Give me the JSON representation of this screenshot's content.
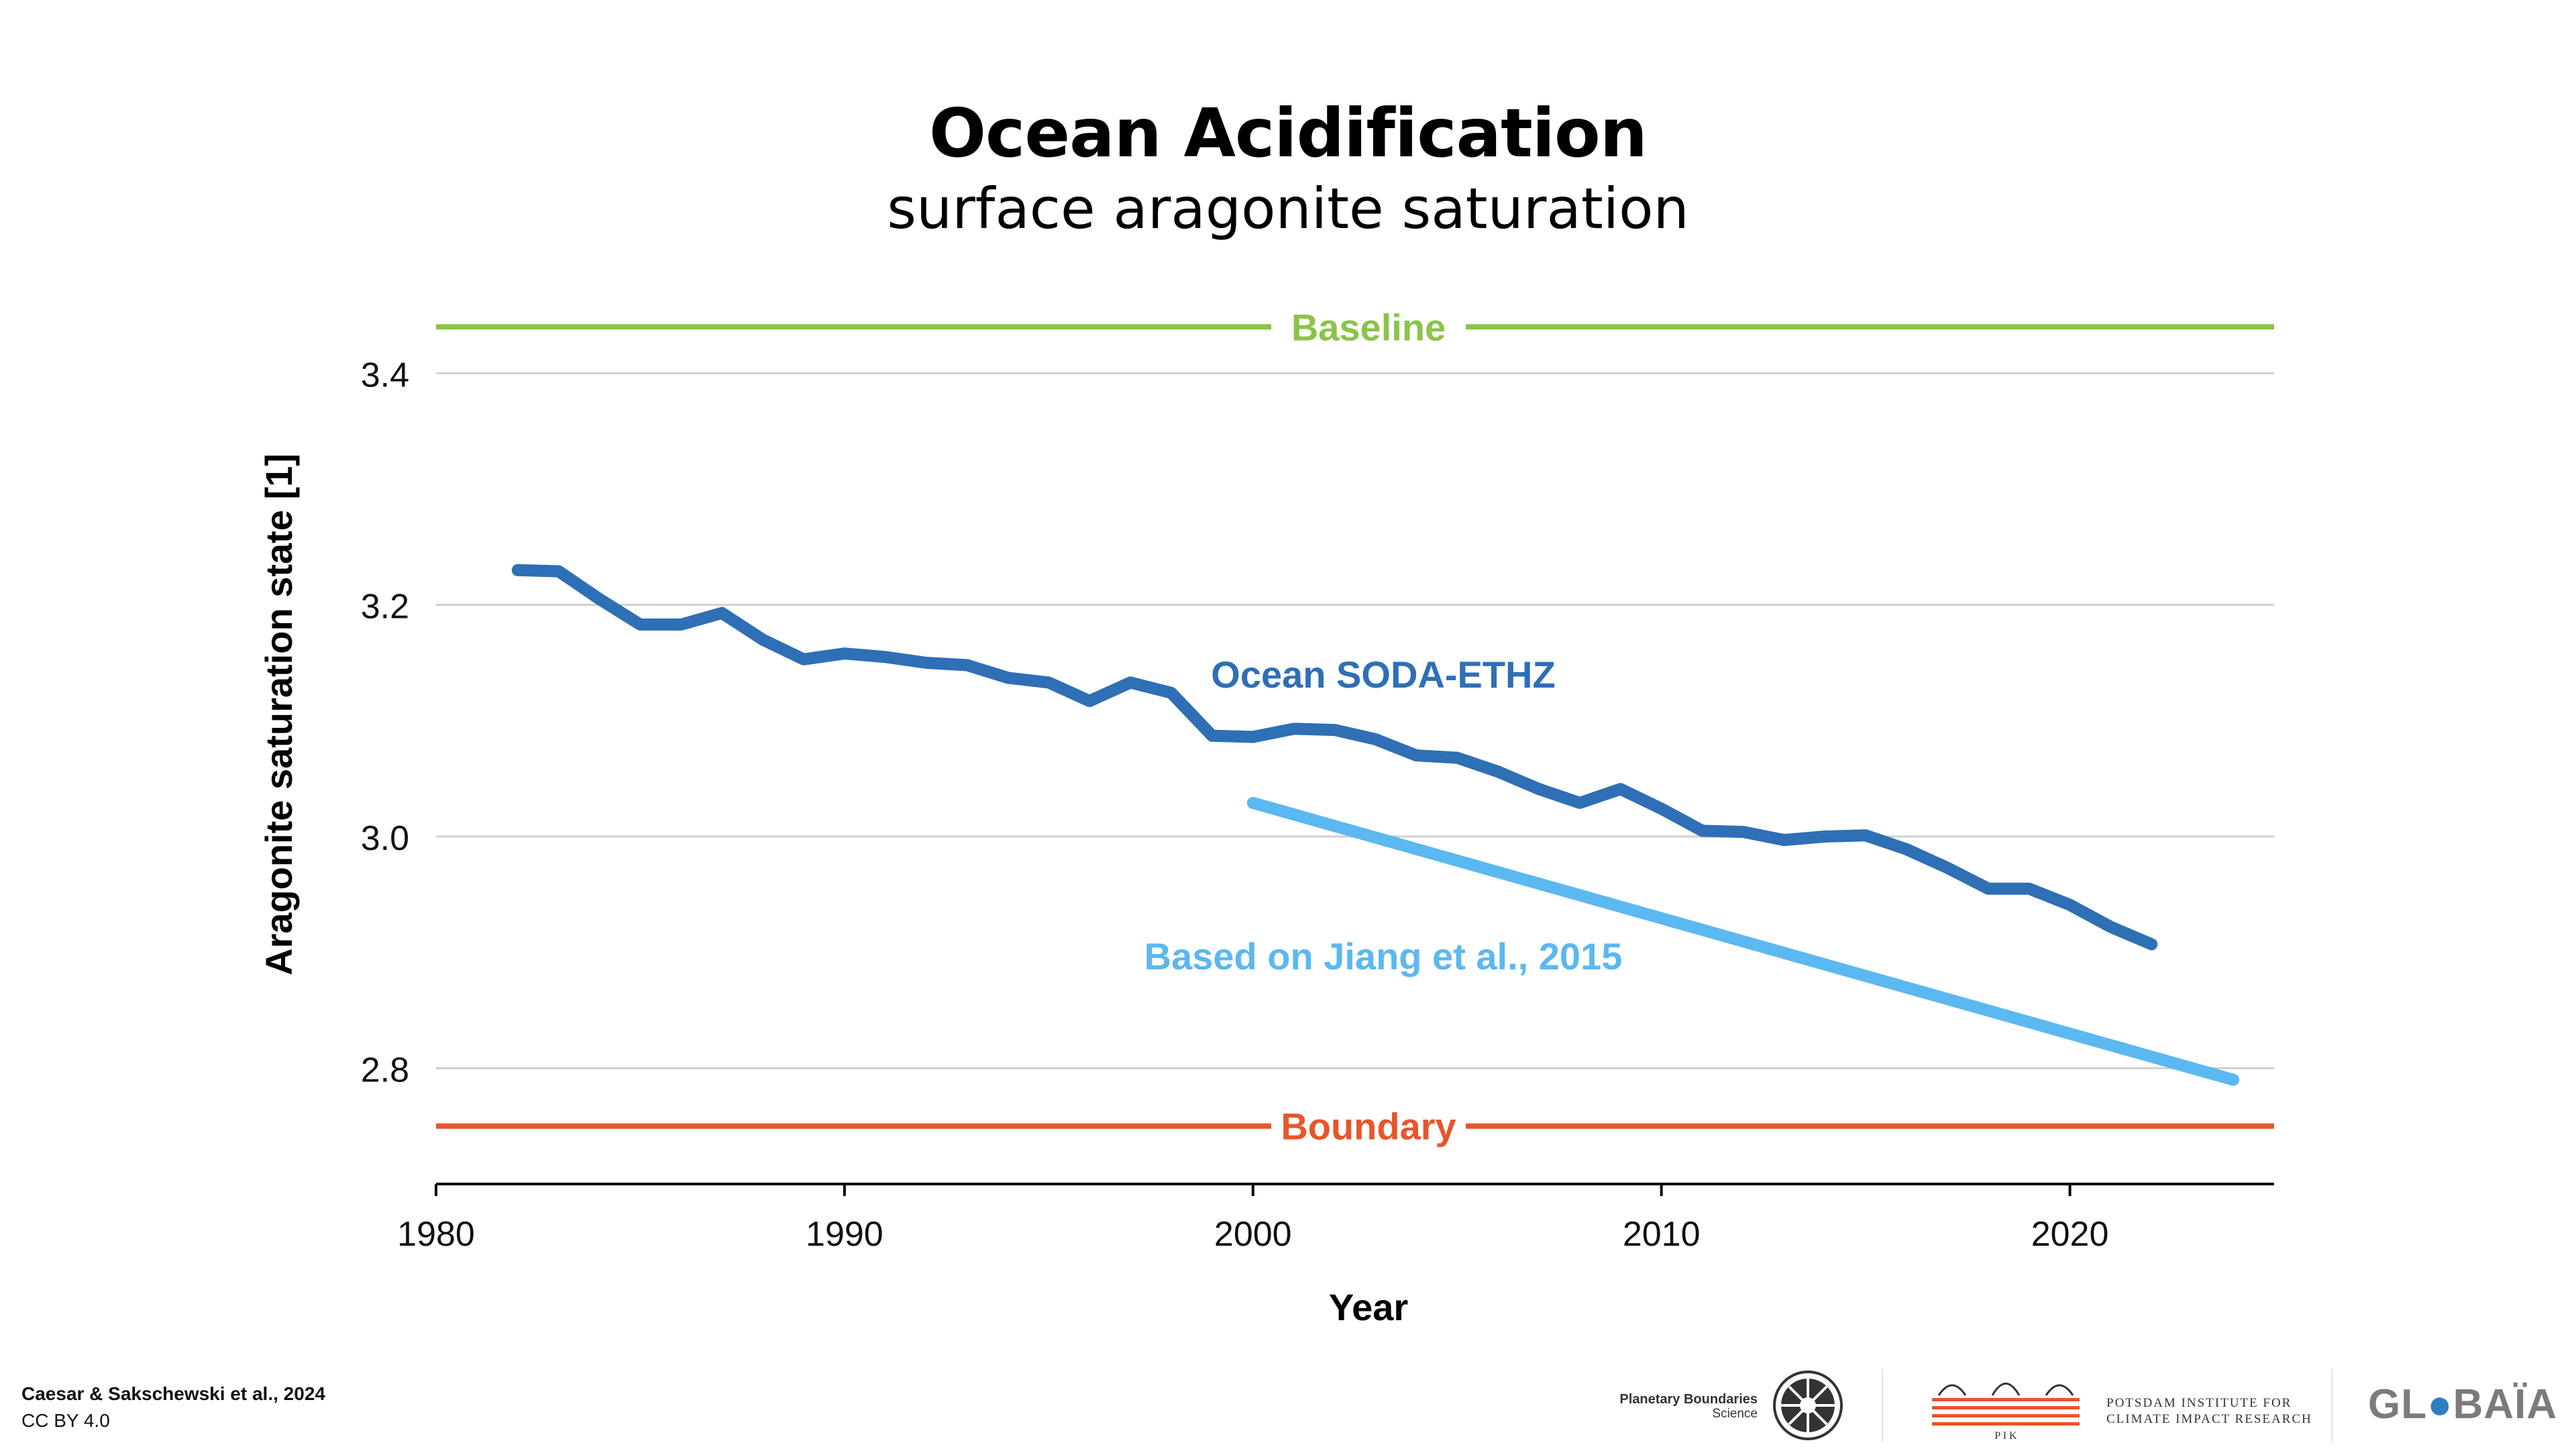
{
  "title": "Ocean Acidification",
  "subtitle": "surface aragonite saturation",
  "chart_data": {
    "type": "line",
    "xlabel": "Year",
    "ylabel": "Aragonite saturation state [1]",
    "xlim": [
      1980,
      2025
    ],
    "ylim": [
      2.7,
      3.45
    ],
    "xticks": [
      1980,
      1990,
      2000,
      2010,
      2020
    ],
    "yticks": [
      2.8,
      3.0,
      3.2,
      3.4
    ],
    "grid": "horizontal",
    "reference_lines": [
      {
        "name": "Baseline",
        "y": 3.44,
        "color": "#8bc34a"
      },
      {
        "name": "Boundary",
        "y": 2.75,
        "color": "#e8552b"
      }
    ],
    "series": [
      {
        "name": "Ocean SODA-ETHZ",
        "color": "#2e6fb5",
        "x": [
          1982,
          1983,
          1984,
          1985,
          1986,
          1987,
          1988,
          1989,
          1990,
          1991,
          1992,
          1993,
          1994,
          1995,
          1996,
          1997,
          1998,
          1999,
          2000,
          2001,
          2002,
          2003,
          2004,
          2005,
          2006,
          2007,
          2008,
          2009,
          2010,
          2011,
          2012,
          2013,
          2014,
          2015,
          2016,
          2017,
          2018,
          2019,
          2020,
          2021,
          2022
        ],
        "y": [
          3.23,
          3.229,
          3.205,
          3.183,
          3.183,
          3.193,
          3.17,
          3.153,
          3.158,
          3.155,
          3.15,
          3.148,
          3.137,
          3.133,
          3.117,
          3.133,
          3.124,
          3.087,
          3.086,
          3.093,
          3.092,
          3.084,
          3.07,
          3.068,
          3.056,
          3.041,
          3.029,
          3.041,
          3.024,
          3.005,
          3.004,
          2.997,
          3.0,
          3.001,
          2.989,
          2.973,
          2.955,
          2.955,
          2.941,
          2.922,
          2.907
        ]
      },
      {
        "name": "Based on Jiang et al., 2015",
        "color": "#5bb8f0",
        "x": [
          2000,
          2024
        ],
        "y": [
          3.029,
          2.79
        ]
      }
    ]
  },
  "footer": {
    "citation": "Caesar & Sakschewski et al., 2024",
    "license": "CC BY 4.0",
    "pbs_line1": "Planetary Boundaries",
    "pbs_line2": "Science",
    "pik_line1": "POTSDAM INSTITUTE FOR",
    "pik_line2": "CLIMATE IMPACT RESEARCH",
    "pik_abbr": "P I K",
    "globaia_pre": "GL",
    "globaia_post": "BAÏA"
  }
}
